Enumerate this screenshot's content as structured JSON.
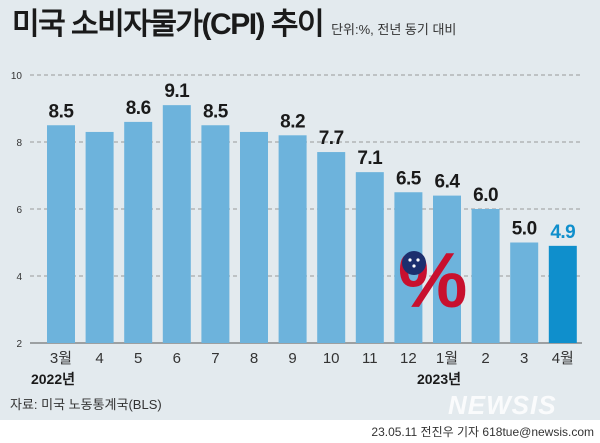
{
  "title": "미국 소비자물가(CPI) 추이",
  "unit": "단위:%, 전년 동기 대비",
  "source": "자료: 미국 노동통계국(BLS)",
  "credit": "23.05.11 전진우 기자 618tue@newsis.com",
  "logo": "NEWSIS",
  "chart_data": {
    "type": "bar",
    "title": "미국 소비자물가(CPI) 추이",
    "categories": [
      "3월",
      "4",
      "5",
      "6",
      "7",
      "8",
      "9",
      "10",
      "11",
      "12",
      "1월",
      "2",
      "3",
      "4월"
    ],
    "values": [
      8.5,
      8.3,
      8.6,
      9.1,
      8.5,
      8.3,
      8.2,
      7.7,
      7.1,
      6.5,
      6.4,
      6.0,
      5.0,
      4.9
    ],
    "labels": [
      "8.5",
      "",
      "8.6",
      "9.1",
      "8.5",
      "",
      "8.2",
      "7.7",
      "7.1",
      "6.5",
      "6.4",
      "6.0",
      "5.0",
      "4.9"
    ],
    "year_labels": [
      {
        "index": 0,
        "text": "2022년"
      },
      {
        "index": 10,
        "text": "2023년"
      }
    ],
    "yticks": [
      2,
      4,
      6,
      8,
      10
    ],
    "ylim": [
      2,
      10
    ],
    "xlabel": "",
    "ylabel": "",
    "grid": true,
    "colors": {
      "bar": "#6db3dc",
      "highlight": "#0f8fcc",
      "label": "#1a1a1a"
    }
  }
}
